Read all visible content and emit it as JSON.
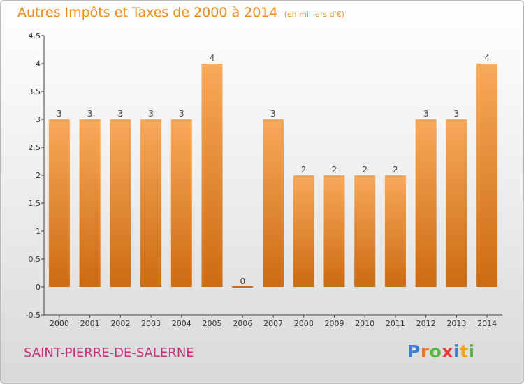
{
  "header": {
    "title": "Autres Impôts et Taxes de 2000 à 2014",
    "unit": "(en milliers d'€)"
  },
  "footer": {
    "commune": "SAINT-PIERRE-DE-SALERNE",
    "logo": [
      "P",
      "r",
      "o",
      "x",
      "i",
      "t",
      "i"
    ]
  },
  "colors": {
    "bar_light": "#f7a95a",
    "bar_dark": "#cc6b12",
    "title": "#ef8a1c",
    "commune": "#c8327a",
    "logo": [
      "#3a7fd0",
      "#e8772a",
      "#59b540",
      "#e23b3b",
      "#3a7fd0",
      "#f0a020",
      "#59b540"
    ]
  },
  "chart_data": {
    "type": "bar",
    "categories": [
      "2000",
      "2001",
      "2002",
      "2003",
      "2004",
      "2005",
      "2006",
      "2007",
      "2008",
      "2009",
      "2010",
      "2011",
      "2012",
      "2013",
      "2014"
    ],
    "values": [
      3,
      3,
      3,
      3,
      3,
      4,
      0,
      3,
      2,
      2,
      2,
      2,
      3,
      3,
      4
    ],
    "labels": [
      "3",
      "3",
      "3",
      "3",
      "3",
      "4",
      "0",
      "3",
      "2",
      "2",
      "2",
      "2",
      "3",
      "3",
      "4"
    ],
    "ylim": [
      -0.5,
      4.5
    ],
    "yticks": [
      -0.5,
      0,
      0.5,
      1,
      1.5,
      2,
      2.5,
      3,
      3.5,
      4,
      4.5
    ],
    "ytick_labels": [
      "-0.5",
      "0",
      "0.5",
      "1",
      "1.5",
      "2",
      "2.5",
      "3",
      "3.5",
      "4",
      "4.5"
    ],
    "grid": false,
    "xlabel": "",
    "ylabel": ""
  }
}
